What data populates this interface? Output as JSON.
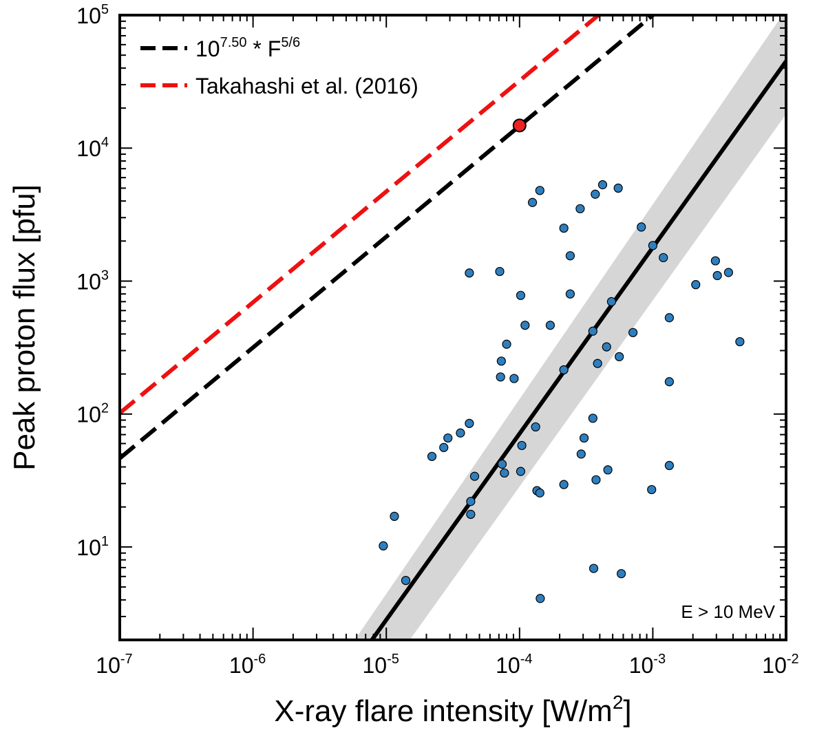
{
  "chart_data": {
    "type": "scatter",
    "xscale": "log",
    "yscale": "log",
    "xlim": [
      1e-07,
      0.01
    ],
    "ylim": [
      2,
      100000
    ],
    "xlabel": "X-ray flare intensity [W/m",
    "xlabel_sup": "2",
    "xlabel_end": "]",
    "ylabel": "Peak proton flux [pfu]",
    "annotation": "E > 10 MeV",
    "x_ticks": [
      {
        "value": 1e-07,
        "base": "10",
        "exp": "-7"
      },
      {
        "value": 1e-06,
        "base": "10",
        "exp": "-6"
      },
      {
        "value": 1e-05,
        "base": "10",
        "exp": "-5"
      },
      {
        "value": 0.0001,
        "base": "10",
        "exp": "-4"
      },
      {
        "value": 0.001,
        "base": "10",
        "exp": "-3"
      },
      {
        "value": 0.01,
        "base": "10",
        "exp": "-2"
      }
    ],
    "y_ticks": [
      {
        "value": 10,
        "base": "10",
        "exp": "1"
      },
      {
        "value": 100,
        "base": "10",
        "exp": "2"
      },
      {
        "value": 1000,
        "base": "10",
        "exp": "3"
      },
      {
        "value": 10000,
        "base": "10",
        "exp": "4"
      },
      {
        "value": 100000,
        "base": "10",
        "exp": "5"
      }
    ],
    "legend": [
      {
        "label": "10",
        "sup": "7.50",
        "rest": " * F",
        "sup2": "5/6",
        "color": "#000000",
        "style": "dashed"
      },
      {
        "label": "Takahashi et al. (2016)",
        "sup": "",
        "rest": "",
        "sup2": "",
        "color": "#ee1111",
        "style": "dashed"
      }
    ],
    "lines": [
      {
        "name": "scaling_law",
        "color": "#000000",
        "dashed": true,
        "log10_coeff": 7.5,
        "slope": 0.8333
      },
      {
        "name": "takahashi_2016",
        "color": "#ee1111",
        "dashed": true,
        "log10_coeff": 7.84,
        "slope": 0.8333
      },
      {
        "name": "fit",
        "color": "#000000",
        "dashed": false,
        "points": [
          [
            7.8e-06,
            2
          ],
          [
            0.01,
            45000
          ]
        ]
      }
    ],
    "band": {
      "color": "#d6d6d6",
      "lower": [
        [
          1.5e-05,
          2
        ],
        [
          0.01,
          18000
        ]
      ],
      "upper": [
        [
          5.8e-06,
          2
        ],
        [
          0.01,
          110000
        ]
      ]
    },
    "highlight_point": {
      "x": 0.0001,
      "y": 14800,
      "color": "#ee2222"
    },
    "point_color": "#2f7fbf",
    "points": [
      [
        9.5e-06,
        10.2
      ],
      [
        1.15e-05,
        17
      ],
      [
        1.4e-05,
        5.6
      ],
      [
        2.2e-05,
        48
      ],
      [
        2.7e-05,
        56
      ],
      [
        2.9e-05,
        66
      ],
      [
        3.6e-05,
        72
      ],
      [
        4.2e-05,
        85
      ],
      [
        4.3e-05,
        22
      ],
      [
        4.3e-05,
        17.6
      ],
      [
        4.6e-05,
        34
      ],
      [
        4.2e-05,
        1150
      ],
      [
        7.1e-05,
        1180
      ],
      [
        7.3e-05,
        250
      ],
      [
        7.2e-05,
        190
      ],
      [
        7.4e-05,
        42
      ],
      [
        7.7e-05,
        36
      ],
      [
        8e-05,
        335
      ],
      [
        9.1e-05,
        185
      ],
      [
        0.000102,
        780
      ],
      [
        0.000104,
        58
      ],
      [
        0.000102,
        37
      ],
      [
        0.00011,
        465
      ],
      [
        0.000125,
        3900
      ],
      [
        0.000142,
        4800
      ],
      [
        0.000132,
        80
      ],
      [
        0.000135,
        26.5
      ],
      [
        0.000142,
        25.5
      ],
      [
        0.000143,
        4.1
      ],
      [
        0.00017,
        465
      ],
      [
        0.000215,
        2500
      ],
      [
        0.000215,
        215
      ],
      [
        0.000215,
        29.5
      ],
      [
        0.00024,
        1550
      ],
      [
        0.00024,
        800
      ],
      [
        0.000285,
        3500
      ],
      [
        0.00029,
        50
      ],
      [
        0.000305,
        66
      ],
      [
        0.000355,
        420
      ],
      [
        0.000355,
        93
      ],
      [
        0.00036,
        6.9
      ],
      [
        0.00037,
        4500
      ],
      [
        0.000375,
        32
      ],
      [
        0.000385,
        240
      ],
      [
        0.00042,
        5300
      ],
      [
        0.00045,
        320
      ],
      [
        0.00046,
        38
      ],
      [
        0.00049,
        700
      ],
      [
        0.00055,
        5000
      ],
      [
        0.00056,
        270
      ],
      [
        0.00058,
        6.3
      ],
      [
        0.00071,
        410
      ],
      [
        0.00082,
        2550
      ],
      [
        0.00098,
        27
      ],
      [
        0.001,
        1850
      ],
      [
        0.0012,
        1500
      ],
      [
        0.00133,
        530
      ],
      [
        0.00133,
        175
      ],
      [
        0.00133,
        41
      ],
      [
        0.0021,
        940
      ],
      [
        0.00295,
        1420
      ],
      [
        0.00305,
        1100
      ],
      [
        0.0037,
        1160
      ],
      [
        0.0045,
        350
      ]
    ]
  }
}
